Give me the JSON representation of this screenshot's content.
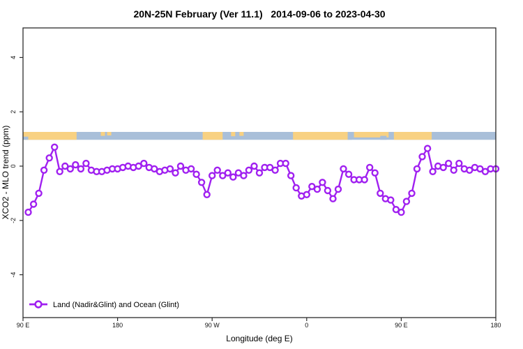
{
  "title": "20N-25N February (Ver 11.1)   2014-09-06 to 2023-04-30",
  "chart_data": {
    "type": "line",
    "title": "20N-25N February (Ver 11.1)   2014-09-06 to 2023-04-30",
    "xlabel": "Longitude (deg E)",
    "ylabel": "XCO2 - MLO trend (ppm)",
    "xlim": [
      90,
      540
    ],
    "ylim": [
      -5,
      5
    ],
    "grid": false,
    "x_ticks": [
      {
        "lon": 90,
        "label": "90 E"
      },
      {
        "lon": 180,
        "label": "180"
      },
      {
        "lon": 270,
        "label": "90 W"
      },
      {
        "lon": 360,
        "label": "0"
      },
      {
        "lon": 450,
        "label": "90 E"
      },
      {
        "lon": 540,
        "label": "180"
      }
    ],
    "y_ticks": [
      -4,
      -2,
      0,
      2,
      4
    ],
    "series": [
      {
        "name": "Land (Nadir&Glint) and Ocean (Glint)",
        "color": "#A020F0",
        "marker": "open-circle",
        "x": [
          95,
          100,
          105,
          110,
          115,
          120,
          125,
          130,
          135,
          140,
          145,
          150,
          155,
          160,
          165,
          170,
          175,
          180,
          185,
          190,
          195,
          200,
          205,
          210,
          215,
          220,
          225,
          230,
          235,
          240,
          245,
          250,
          255,
          260,
          265,
          270,
          275,
          280,
          285,
          290,
          295,
          300,
          305,
          310,
          315,
          320,
          325,
          330,
          335,
          340,
          345,
          350,
          355,
          360,
          365,
          370,
          375,
          380,
          385,
          390,
          395,
          400,
          405,
          410,
          415,
          420,
          425,
          430,
          435,
          440,
          445,
          450,
          455,
          460,
          465,
          470,
          475,
          480,
          485,
          490,
          495,
          500,
          505,
          510,
          515,
          520,
          525,
          530,
          535,
          540
        ],
        "values": [
          -1.7,
          -1.4,
          -1.0,
          -0.15,
          0.3,
          0.7,
          -0.2,
          0.0,
          -0.1,
          0.05,
          -0.1,
          0.1,
          -0.15,
          -0.2,
          -0.2,
          -0.15,
          -0.1,
          -0.1,
          -0.05,
          0.0,
          -0.05,
          0.0,
          0.1,
          -0.05,
          -0.1,
          -0.2,
          -0.15,
          -0.1,
          -0.25,
          0.0,
          -0.15,
          -0.1,
          -0.3,
          -0.6,
          -1.05,
          -0.35,
          -0.15,
          -0.35,
          -0.25,
          -0.4,
          -0.25,
          -0.35,
          -0.15,
          0.0,
          -0.25,
          -0.05,
          -0.05,
          -0.15,
          0.1,
          0.1,
          -0.35,
          -0.8,
          -1.1,
          -1.05,
          -0.75,
          -0.85,
          -0.6,
          -0.9,
          -1.2,
          -0.85,
          -0.1,
          -0.3,
          -0.5,
          -0.5,
          -0.5,
          -0.05,
          -0.25,
          -1.0,
          -1.2,
          -1.25,
          -1.6,
          -1.7,
          -1.3,
          -1.0,
          -0.1,
          0.35,
          0.65,
          -0.2,
          0.0,
          -0.05,
          0.1,
          -0.15,
          0.1,
          -0.1,
          -0.15,
          -0.05,
          -0.1,
          -0.2,
          -0.1,
          -0.1
        ]
      }
    ],
    "map_band": {
      "description": "land/ocean strip along longitude",
      "value_range": [
        0.97,
        1.26
      ],
      "ocean_color": "#A9BFD9",
      "land_color": "#F8D182",
      "land_segments": [
        {
          "from": 90,
          "to": 141,
          "frac": 1.0
        },
        {
          "from": 164,
          "to": 168,
          "frac": 0.5
        },
        {
          "from": 170,
          "to": 174,
          "frac": 0.45
        },
        {
          "from": 261,
          "to": 280,
          "frac": 1.0
        },
        {
          "from": 288,
          "to": 292,
          "frac": 0.55
        },
        {
          "from": 296,
          "to": 300,
          "frac": 0.5
        },
        {
          "from": 347,
          "to": 400,
          "frac": 1.0
        },
        {
          "from": 405,
          "to": 438,
          "frac": 0.7
        },
        {
          "from": 443,
          "to": 479,
          "frac": 1.0
        }
      ],
      "ocean_notches": [
        {
          "from": 90,
          "to": 95,
          "frac": 0.4
        },
        {
          "from": 399,
          "to": 403,
          "frac": 1.0
        },
        {
          "from": 430,
          "to": 436,
          "frac": 0.5
        }
      ]
    },
    "legend": {
      "label": "Land (Nadir&Glint) and Ocean (Glint)",
      "position": "bottom-left"
    }
  }
}
